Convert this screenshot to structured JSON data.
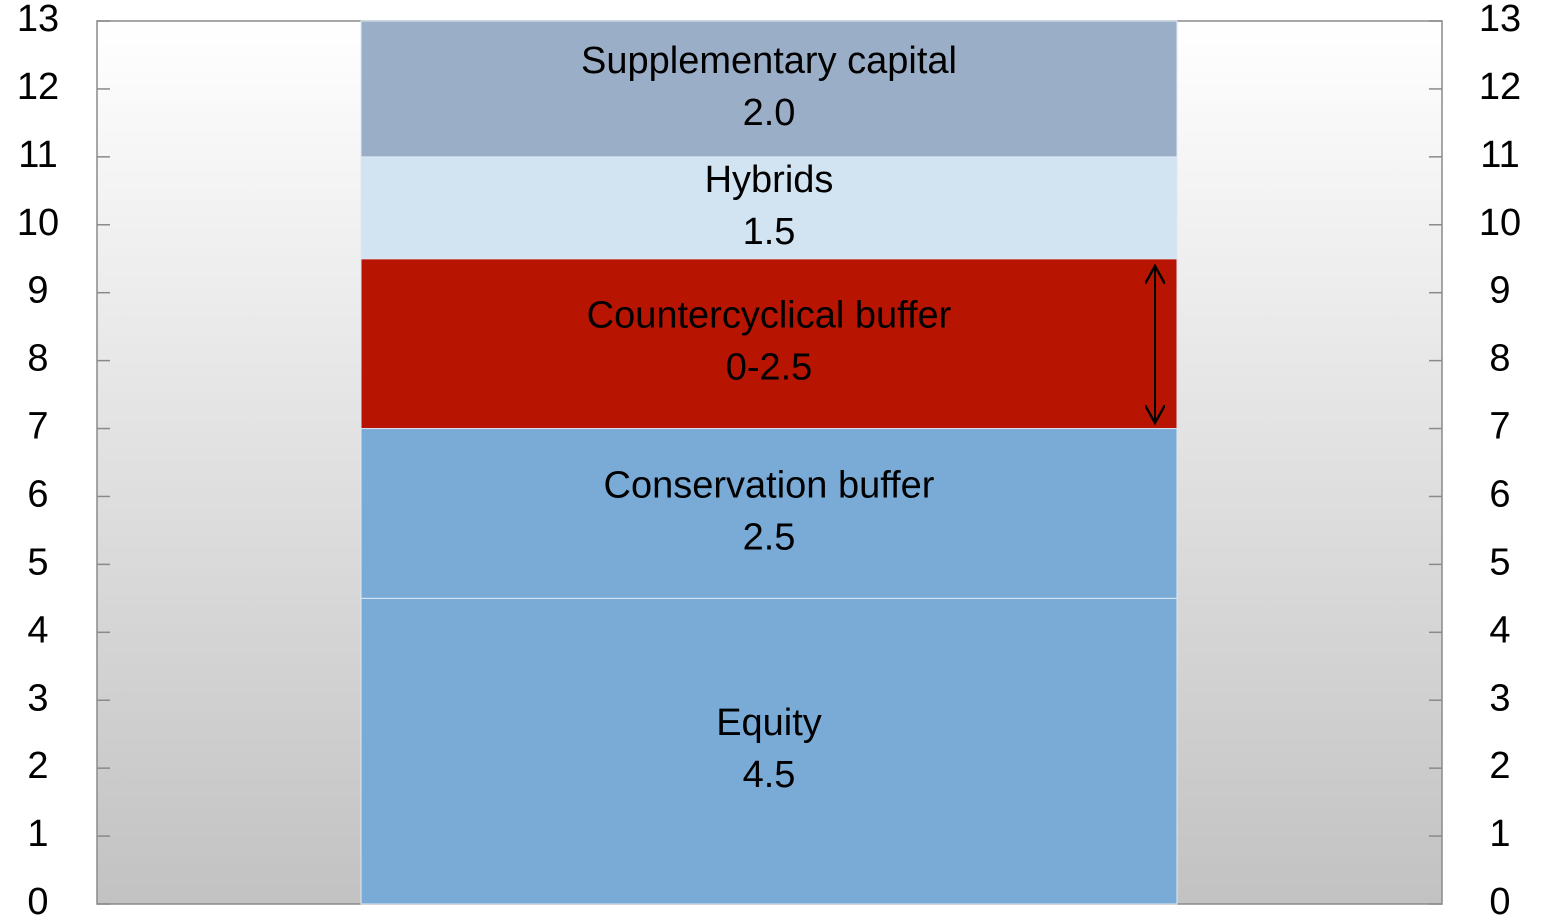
{
  "chart_data": {
    "type": "stacked_bar",
    "categories": [
      null
    ],
    "series": [
      {
        "name": "Equity",
        "color": "#7aabd7",
        "values": [
          4.5
        ],
        "value_labels": [
          "4.5"
        ]
      },
      {
        "name": "Conservation buffer",
        "color": "#7aabd7",
        "values": [
          2.5
        ],
        "value_labels": [
          "2.5"
        ]
      },
      {
        "name": "Countercyclical buffer",
        "color": "#b81402",
        "values": [
          2.5
        ],
        "value_labels": [
          "0-2.5"
        ]
      },
      {
        "name": "Hybrids",
        "color": "#d2e3f1",
        "values": [
          1.5
        ],
        "value_labels": [
          "1.5"
        ]
      },
      {
        "name": "Supplementary capital",
        "color": "#9baec7",
        "values": [
          2
        ],
        "value_labels": [
          "2.0"
        ]
      }
    ],
    "ylim": [
      0,
      13
    ],
    "yticks": [
      0,
      1,
      2,
      3,
      4,
      5,
      6,
      7,
      8,
      9,
      10,
      11,
      12,
      13
    ],
    "y2lim": [
      0,
      13
    ],
    "y2ticks": [
      0,
      1,
      2,
      3,
      4,
      5,
      6,
      7,
      8,
      9,
      10,
      11,
      12,
      13
    ]
  }
}
